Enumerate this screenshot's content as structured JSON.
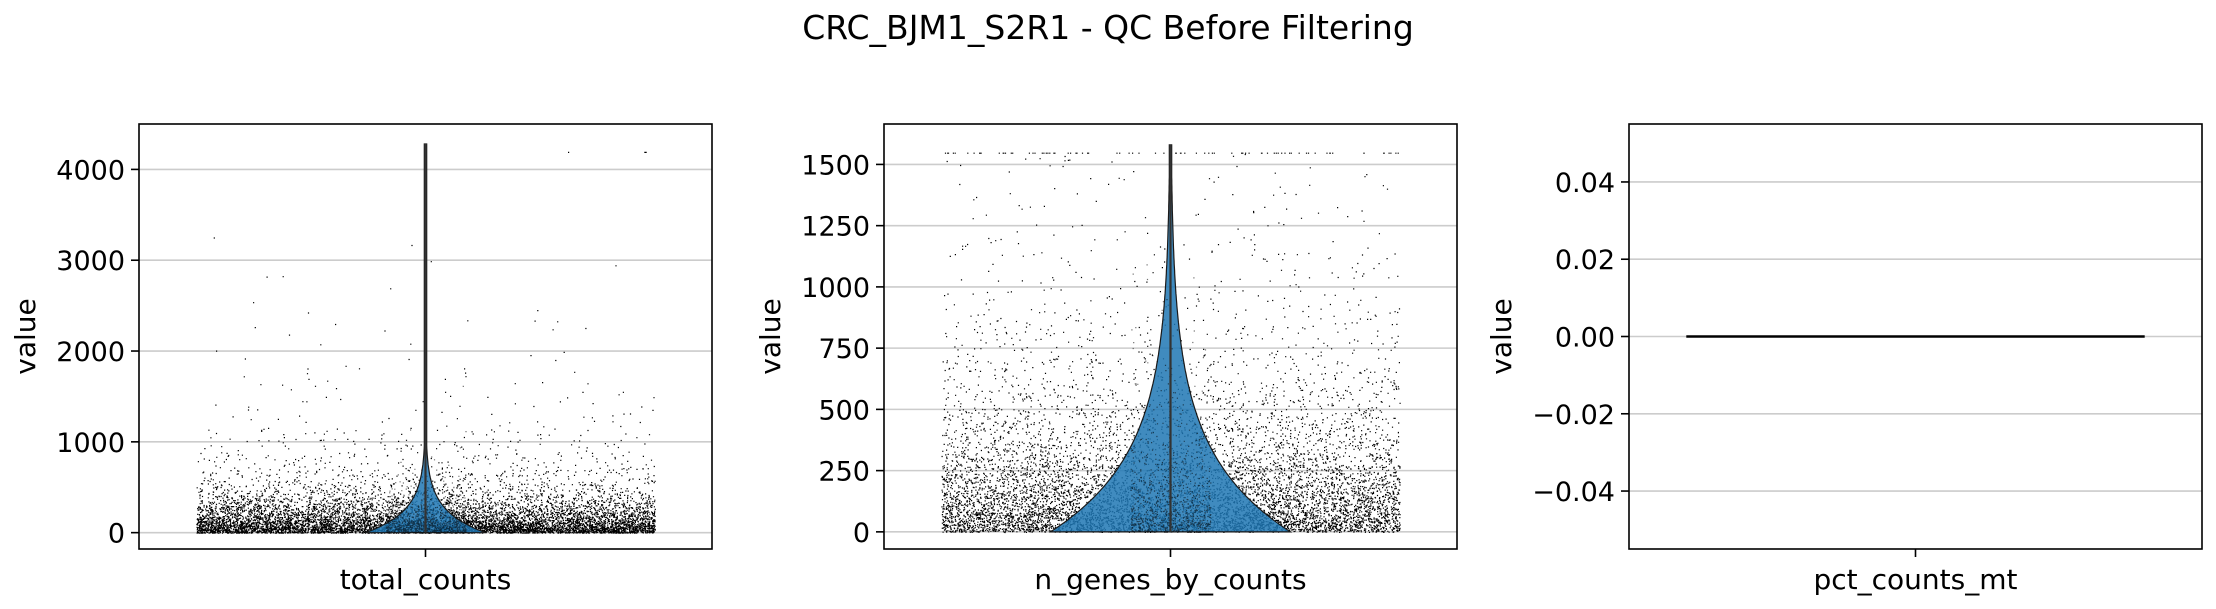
{
  "figure": {
    "suptitle": "CRC_BJM1_S2R1 - QC Before Filtering"
  },
  "colors": {
    "violin_fill": "#1f77b4",
    "points": "#000000",
    "grid": "#cccccc",
    "axes": "#000000"
  },
  "chart_data": [
    {
      "type": "violin",
      "xlabel": "total_counts",
      "ylabel": "value",
      "ylim": [
        -180,
        4500
      ],
      "yticks": [
        0,
        1000,
        2000,
        3000,
        4000
      ],
      "ytick_labels": [
        "0",
        "1000",
        "2000",
        "3000",
        "4000"
      ],
      "grid": "horizontal",
      "distribution": {
        "min": 0,
        "max": 4280,
        "median": 150,
        "q1": 70,
        "q3": 300,
        "mode": 120
      },
      "points_overlay": true
    },
    {
      "type": "violin",
      "xlabel": "n_genes_by_counts",
      "ylabel": "value",
      "ylim": [
        -70,
        1665
      ],
      "yticks": [
        0,
        250,
        500,
        750,
        1000,
        1250,
        1500
      ],
      "ytick_labels": [
        "0",
        "250",
        "500",
        "750",
        "1000",
        "1250",
        "1500"
      ],
      "grid": "horizontal",
      "distribution": {
        "min": 0,
        "max": 1580,
        "median": 150,
        "q1": 80,
        "q3": 260,
        "mode": 130
      },
      "points_overlay": true
    },
    {
      "type": "violin",
      "xlabel": "pct_counts_mt",
      "ylabel": "value",
      "ylim": [
        -0.055,
        0.055
      ],
      "yticks": [
        -0.04,
        -0.02,
        0.0,
        0.02,
        0.04
      ],
      "ytick_labels": [
        "−0.04",
        "−0.02",
        "0.00",
        "0.02",
        "0.04"
      ],
      "grid": "horizontal",
      "distribution": {
        "min": 0,
        "max": 0,
        "constant": 0.0
      },
      "points_overlay": false
    }
  ]
}
